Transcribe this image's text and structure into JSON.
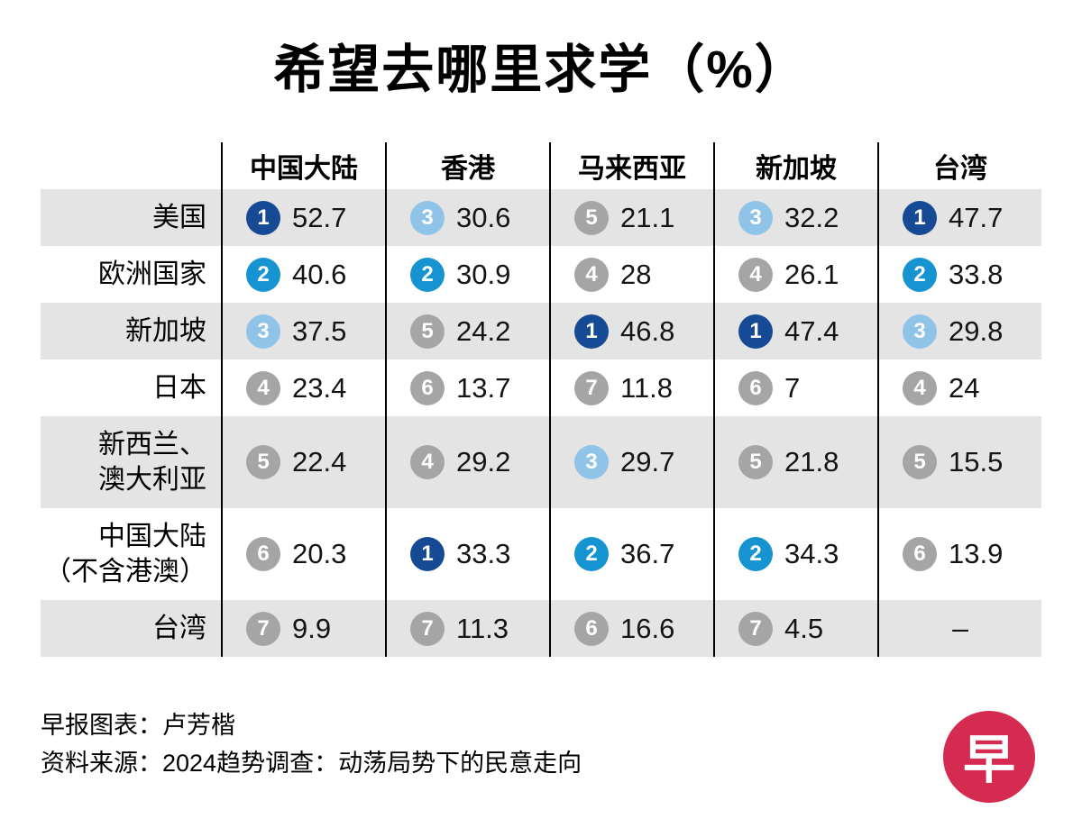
{
  "title": "希望去哪里求学（%）",
  "columns": [
    "中国大陆",
    "香港",
    "马来西亚",
    "新加坡",
    "台湾"
  ],
  "rows": [
    {
      "label": "美国",
      "cells": [
        {
          "rank": 1,
          "value": "52.7"
        },
        {
          "rank": 3,
          "value": "30.6"
        },
        {
          "rank": 5,
          "value": "21.1"
        },
        {
          "rank": 3,
          "value": "32.2"
        },
        {
          "rank": 1,
          "value": "47.7"
        }
      ]
    },
    {
      "label": "欧洲国家",
      "cells": [
        {
          "rank": 2,
          "value": "40.6"
        },
        {
          "rank": 2,
          "value": "30.9"
        },
        {
          "rank": 4,
          "value": "28"
        },
        {
          "rank": 4,
          "value": "26.1"
        },
        {
          "rank": 2,
          "value": "33.8"
        }
      ]
    },
    {
      "label": "新加坡",
      "cells": [
        {
          "rank": 3,
          "value": "37.5"
        },
        {
          "rank": 5,
          "value": "24.2"
        },
        {
          "rank": 1,
          "value": "46.8"
        },
        {
          "rank": 1,
          "value": "47.4"
        },
        {
          "rank": 3,
          "value": "29.8"
        }
      ]
    },
    {
      "label": "日本",
      "cells": [
        {
          "rank": 4,
          "value": "23.4"
        },
        {
          "rank": 6,
          "value": "13.7"
        },
        {
          "rank": 7,
          "value": "11.8"
        },
        {
          "rank": 6,
          "value": "7"
        },
        {
          "rank": 4,
          "value": "24"
        }
      ]
    },
    {
      "label": "新西兰、\n澳大利亚",
      "cells": [
        {
          "rank": 5,
          "value": "22.4"
        },
        {
          "rank": 4,
          "value": "29.2"
        },
        {
          "rank": 3,
          "value": "29.7"
        },
        {
          "rank": 5,
          "value": "21.8"
        },
        {
          "rank": 5,
          "value": "15.5"
        }
      ]
    },
    {
      "label": "中国大陆\n（不含港澳）",
      "cells": [
        {
          "rank": 6,
          "value": "20.3"
        },
        {
          "rank": 1,
          "value": "33.3"
        },
        {
          "rank": 2,
          "value": "36.7"
        },
        {
          "rank": 2,
          "value": "34.3"
        },
        {
          "rank": 6,
          "value": "13.9"
        }
      ]
    },
    {
      "label": "台湾",
      "cells": [
        {
          "rank": 7,
          "value": "9.9"
        },
        {
          "rank": 7,
          "value": "11.3"
        },
        {
          "rank": 6,
          "value": "16.6"
        },
        {
          "rank": 7,
          "value": "4.5"
        },
        {
          "rank": null,
          "value": "–"
        }
      ]
    }
  ],
  "footer": {
    "credit": "早报图表：卢芳楷",
    "source": "资料来源：2024趋势调查：动荡局势下的民意走向"
  },
  "logo": {
    "text": "早"
  },
  "colors": {
    "rank1": "#174a94",
    "rank2": "#1693d1",
    "rank3": "#8fc4e8",
    "rank_other": "#a5a5a5",
    "row_shade": "#e4e4e4",
    "logo_red": "#d52b50"
  },
  "chart_data": {
    "type": "table",
    "title": "希望去哪里求学（%）",
    "columns": [
      "中国大陆",
      "香港",
      "马来西亚",
      "新加坡",
      "台湾"
    ],
    "row_labels": [
      "美国",
      "欧洲国家",
      "新加坡",
      "日本",
      "新西兰、澳大利亚",
      "中国大陆（不含港澳）",
      "台湾"
    ],
    "values_percent": [
      [
        52.7,
        30.6,
        21.1,
        32.2,
        47.7
      ],
      [
        40.6,
        30.9,
        28,
        26.1,
        33.8
      ],
      [
        37.5,
        24.2,
        46.8,
        47.4,
        29.8
      ],
      [
        23.4,
        13.7,
        11.8,
        7,
        24
      ],
      [
        22.4,
        29.2,
        29.7,
        21.8,
        15.5
      ],
      [
        20.3,
        33.3,
        36.7,
        34.3,
        13.9
      ],
      [
        9.9,
        11.3,
        16.6,
        4.5,
        null
      ]
    ],
    "ranks": [
      [
        1,
        3,
        5,
        3,
        1
      ],
      [
        2,
        2,
        4,
        4,
        2
      ],
      [
        3,
        5,
        1,
        1,
        3
      ],
      [
        4,
        6,
        7,
        6,
        4
      ],
      [
        5,
        4,
        3,
        5,
        5
      ],
      [
        6,
        1,
        2,
        2,
        6
      ],
      [
        7,
        7,
        6,
        7,
        null
      ]
    ],
    "legend": "圆圈颜色表示排名：深蓝=第1，蓝=第2，浅蓝=第3，灰=第4至7",
    "grid": true,
    "legend_position": "none"
  }
}
